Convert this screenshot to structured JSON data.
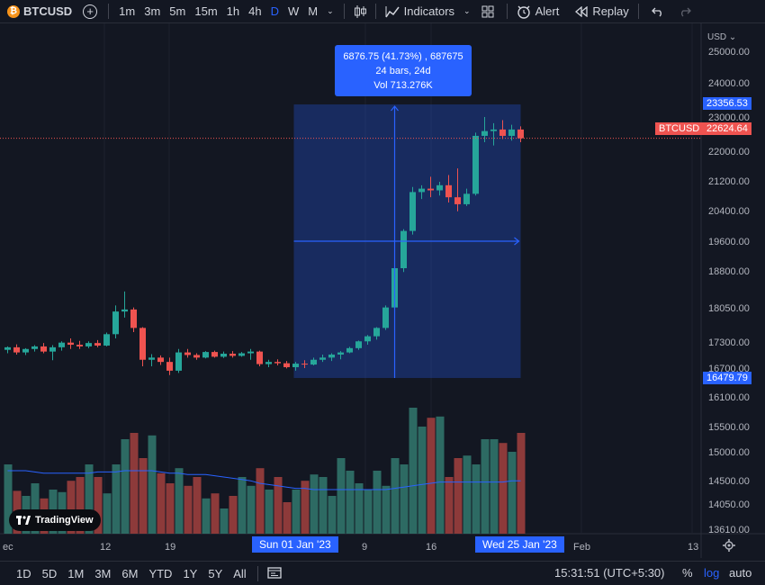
{
  "toolbar": {
    "symbol": "BTCUSD",
    "coin_glyph": "₿",
    "intervals": [
      "1m",
      "3m",
      "5m",
      "15m",
      "1h",
      "4h",
      "D",
      "W",
      "M"
    ],
    "active_interval": "D",
    "indicators_label": "Indicators",
    "alert_label": "Alert",
    "replay_label": "Replay"
  },
  "price_axis": {
    "currency": "USD",
    "ticks": [
      "25000.00",
      "24000.00",
      "23000.00",
      "22000.00",
      "21200.00",
      "20400.00",
      "19600.00",
      "18800.00",
      "18050.00",
      "17300.00",
      "16700.00",
      "16100.00",
      "15500.00",
      "15000.00",
      "14500.00",
      "14050.00",
      "13610.00"
    ],
    "range_high": "23356.53",
    "range_low": "16479.79",
    "last_symbol": "BTCUSD",
    "last_price": "22624.64"
  },
  "time_axis": {
    "labels": [
      "ec",
      "12",
      "19",
      "9",
      "16",
      "Feb",
      "13"
    ],
    "range_start": "Sun 01 Jan '23",
    "range_end": "Wed 25 Jan '23"
  },
  "measure_tooltip": {
    "line1": "6876.75 (41.73%) , 687675",
    "line2": "24 bars, 24d",
    "line3": "Vol 713.276K"
  },
  "logo_text": "TradingView",
  "bottom_bar": {
    "ranges": [
      "1D",
      "5D",
      "1M",
      "3M",
      "6M",
      "YTD",
      "1Y",
      "5Y",
      "All"
    ],
    "clock": "15:31:51 (UTC+5:30)",
    "percent": "%",
    "log": "log",
    "auto": "auto"
  },
  "colors": {
    "up": "#26a69a",
    "down": "#ef5350",
    "accent": "#2962ff",
    "background": "#131722"
  },
  "chart_data": {
    "type": "candlestick",
    "symbol": "BTCUSD",
    "interval": "D",
    "log_scale": true,
    "candles": [
      {
        "o": 16880,
        "h": 16960,
        "l": 16800,
        "c": 16940
      },
      {
        "o": 16940,
        "h": 17010,
        "l": 16770,
        "c": 16820
      },
      {
        "o": 16820,
        "h": 16920,
        "l": 16760,
        "c": 16900
      },
      {
        "o": 16900,
        "h": 16990,
        "l": 16840,
        "c": 16960
      },
      {
        "o": 16960,
        "h": 17040,
        "l": 16800,
        "c": 16840
      },
      {
        "o": 16840,
        "h": 16990,
        "l": 16640,
        "c": 16940
      },
      {
        "o": 16940,
        "h": 17080,
        "l": 16860,
        "c": 17050
      },
      {
        "o": 17050,
        "h": 17150,
        "l": 16900,
        "c": 17000
      },
      {
        "o": 17000,
        "h": 17090,
        "l": 16900,
        "c": 16960
      },
      {
        "o": 16960,
        "h": 17080,
        "l": 16920,
        "c": 17040
      },
      {
        "o": 17040,
        "h": 17110,
        "l": 16940,
        "c": 16980
      },
      {
        "o": 16980,
        "h": 17290,
        "l": 16960,
        "c": 17250
      },
      {
        "o": 17250,
        "h": 17950,
        "l": 17150,
        "c": 17800
      },
      {
        "o": 17800,
        "h": 18300,
        "l": 17650,
        "c": 17850
      },
      {
        "o": 17850,
        "h": 17900,
        "l": 17300,
        "c": 17400
      },
      {
        "o": 17400,
        "h": 17420,
        "l": 16500,
        "c": 16650
      },
      {
        "o": 16650,
        "h": 16780,
        "l": 16500,
        "c": 16700
      },
      {
        "o": 16700,
        "h": 16750,
        "l": 16530,
        "c": 16600
      },
      {
        "o": 16600,
        "h": 16700,
        "l": 16300,
        "c": 16400
      },
      {
        "o": 16400,
        "h": 16900,
        "l": 16350,
        "c": 16820
      },
      {
        "o": 16820,
        "h": 16900,
        "l": 16700,
        "c": 16760
      },
      {
        "o": 16760,
        "h": 16800,
        "l": 16650,
        "c": 16700
      },
      {
        "o": 16700,
        "h": 16850,
        "l": 16680,
        "c": 16830
      },
      {
        "o": 16830,
        "h": 16860,
        "l": 16700,
        "c": 16720
      },
      {
        "o": 16720,
        "h": 16840,
        "l": 16690,
        "c": 16790
      },
      {
        "o": 16790,
        "h": 16850,
        "l": 16700,
        "c": 16740
      },
      {
        "o": 16740,
        "h": 16830,
        "l": 16720,
        "c": 16800
      },
      {
        "o": 16800,
        "h": 16900,
        "l": 16650,
        "c": 16840
      },
      {
        "o": 16840,
        "h": 16860,
        "l": 16500,
        "c": 16550
      },
      {
        "o": 16550,
        "h": 16650,
        "l": 16480,
        "c": 16600
      },
      {
        "o": 16600,
        "h": 16660,
        "l": 16520,
        "c": 16570
      },
      {
        "o": 16570,
        "h": 16620,
        "l": 16450,
        "c": 16480
      },
      {
        "o": 16480,
        "h": 16600,
        "l": 16400,
        "c": 16560
      },
      {
        "o": 16560,
        "h": 16640,
        "l": 16460,
        "c": 16540
      },
      {
        "o": 16540,
        "h": 16700,
        "l": 16520,
        "c": 16650
      },
      {
        "o": 16650,
        "h": 16770,
        "l": 16600,
        "c": 16700
      },
      {
        "o": 16700,
        "h": 16800,
        "l": 16620,
        "c": 16770
      },
      {
        "o": 16770,
        "h": 16850,
        "l": 16660,
        "c": 16820
      },
      {
        "o": 16820,
        "h": 16950,
        "l": 16800,
        "c": 16920
      },
      {
        "o": 16920,
        "h": 17100,
        "l": 16880,
        "c": 17080
      },
      {
        "o": 17080,
        "h": 17230,
        "l": 17000,
        "c": 17200
      },
      {
        "o": 17200,
        "h": 17420,
        "l": 17120,
        "c": 17400
      },
      {
        "o": 17400,
        "h": 17950,
        "l": 17350,
        "c": 17900
      },
      {
        "o": 17900,
        "h": 19000,
        "l": 17850,
        "c": 18900
      },
      {
        "o": 18900,
        "h": 19950,
        "l": 18800,
        "c": 19900
      },
      {
        "o": 19900,
        "h": 21150,
        "l": 19800,
        "c": 21000
      },
      {
        "o": 21000,
        "h": 21200,
        "l": 20800,
        "c": 21100
      },
      {
        "o": 21100,
        "h": 21450,
        "l": 20850,
        "c": 21050
      },
      {
        "o": 21050,
        "h": 21300,
        "l": 20900,
        "c": 21200
      },
      {
        "o": 21200,
        "h": 21500,
        "l": 20700,
        "c": 20850
      },
      {
        "o": 20850,
        "h": 21700,
        "l": 20450,
        "c": 20650
      },
      {
        "o": 20650,
        "h": 21100,
        "l": 20600,
        "c": 20950
      },
      {
        "o": 20950,
        "h": 22800,
        "l": 20900,
        "c": 22700
      },
      {
        "o": 22700,
        "h": 23300,
        "l": 22500,
        "c": 22850
      },
      {
        "o": 22850,
        "h": 23100,
        "l": 22400,
        "c": 22900
      },
      {
        "o": 22900,
        "h": 23200,
        "l": 22600,
        "c": 22700
      },
      {
        "o": 22700,
        "h": 23050,
        "l": 22550,
        "c": 22900
      },
      {
        "o": 22900,
        "h": 23000,
        "l": 22500,
        "c": 22624.64
      }
    ],
    "volumes": [
      0.55,
      0.34,
      0.3,
      0.4,
      0.28,
      0.35,
      0.33,
      0.42,
      0.45,
      0.55,
      0.45,
      0.32,
      0.55,
      0.75,
      0.8,
      0.6,
      0.78,
      0.48,
      0.4,
      0.52,
      0.38,
      0.45,
      0.28,
      0.32,
      0.2,
      0.3,
      0.45,
      0.38,
      0.52,
      0.35,
      0.45,
      0.25,
      0.35,
      0.42,
      0.47,
      0.45,
      0.3,
      0.6,
      0.5,
      0.4,
      0.35,
      0.5,
      0.38,
      0.6,
      0.55,
      1.0,
      0.85,
      0.92,
      0.93,
      0.45,
      0.6,
      0.62,
      0.55,
      0.75,
      0.75,
      0.72,
      0.65,
      0.8
    ],
    "volume_ma": [
      0.5,
      0.5,
      0.5,
      0.49,
      0.48,
      0.48,
      0.48,
      0.48,
      0.48,
      0.48,
      0.49,
      0.49,
      0.49,
      0.5,
      0.5,
      0.5,
      0.5,
      0.49,
      0.48,
      0.48,
      0.47,
      0.47,
      0.47,
      0.46,
      0.45,
      0.44,
      0.43,
      0.42,
      0.4,
      0.39,
      0.38,
      0.37,
      0.36,
      0.36,
      0.35,
      0.35,
      0.35,
      0.35,
      0.35,
      0.35,
      0.35,
      0.35,
      0.35,
      0.36,
      0.37,
      0.38,
      0.39,
      0.4,
      0.41,
      0.41,
      0.41,
      0.41,
      0.41,
      0.41,
      0.41,
      0.41,
      0.42,
      0.42
    ],
    "measurement": {
      "from_price": 16479.79,
      "to_price": 23356.53,
      "change": "6876.75 (41.73%)",
      "bars": 24,
      "days": 24,
      "volume": "713.276K"
    }
  }
}
